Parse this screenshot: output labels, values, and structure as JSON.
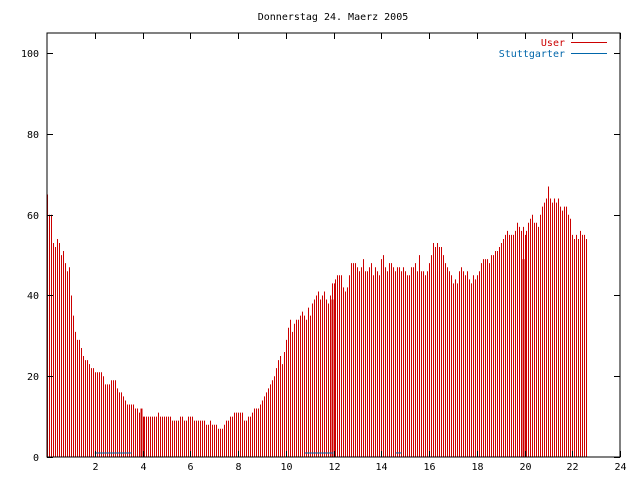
{
  "chart_data": {
    "type": "bar",
    "title": "Donnerstag 24. Maerz 2005",
    "xlabel": "",
    "ylabel": "",
    "xlim": [
      0,
      24
    ],
    "ylim": [
      0,
      105
    ],
    "xticks": [
      "2",
      "4",
      "6",
      "8",
      "10",
      "12",
      "14",
      "16",
      "18",
      "20",
      "22",
      "24"
    ],
    "yticks": [
      "0",
      "20",
      "40",
      "60",
      "80",
      "100"
    ],
    "grid": false,
    "legend_position": "top-right",
    "series": [
      {
        "name": "User",
        "color": "#cc0000",
        "step_minutes": 5,
        "values": [
          65,
          60,
          60,
          53,
          52,
          54,
          53,
          50,
          51,
          48,
          46,
          47,
          40,
          35,
          31,
          29,
          29,
          27,
          25,
          24,
          24,
          23,
          22,
          22,
          21,
          21,
          21,
          21,
          20,
          18,
          18,
          18,
          19,
          19,
          19,
          17,
          16,
          16,
          15,
          14,
          13,
          13,
          13,
          13,
          12,
          12,
          11,
          11,
          10,
          10,
          10,
          10,
          10,
          10,
          10,
          10,
          11,
          10,
          10,
          10,
          10,
          10,
          10,
          9,
          9,
          9,
          9,
          10,
          10,
          9,
          9,
          10,
          10,
          10,
          9,
          9,
          9,
          9,
          9,
          9,
          8,
          8,
          9,
          8,
          8,
          8,
          7,
          7,
          7,
          8,
          9,
          9,
          10,
          10,
          11,
          11,
          11,
          11,
          11,
          9,
          9,
          10,
          10,
          11,
          12,
          12,
          12,
          13,
          14,
          15,
          16,
          17,
          18,
          19,
          20,
          22,
          24,
          25,
          23,
          26,
          29,
          32,
          34,
          31,
          33,
          34,
          34,
          35,
          36,
          35,
          34,
          37,
          35,
          38,
          39,
          40,
          41,
          39,
          40,
          41,
          39,
          38,
          40,
          43,
          43,
          44,
          45,
          45,
          45,
          42,
          41,
          42,
          45,
          48,
          48,
          48,
          47,
          46,
          47,
          49,
          46,
          46,
          47,
          48,
          45,
          47,
          46,
          45,
          49,
          50,
          47,
          46,
          48,
          48,
          47,
          46,
          47,
          47,
          46,
          47,
          46,
          45,
          45,
          47,
          47,
          48,
          46,
          50,
          46,
          46,
          45,
          46,
          48,
          50,
          53,
          52,
          53,
          52,
          52,
          50,
          48,
          47,
          46,
          45,
          43,
          44,
          43,
          46,
          47,
          46,
          45,
          46,
          44,
          43,
          45,
          44,
          45,
          46,
          48,
          49,
          49,
          49,
          48,
          50,
          50,
          51,
          51,
          52,
          53,
          54,
          55,
          56,
          55,
          55,
          55,
          56,
          58,
          57,
          56,
          57,
          55,
          56,
          58,
          59,
          60,
          58,
          58,
          57,
          60,
          62,
          63,
          64,
          67,
          64,
          63,
          64,
          63,
          64,
          62,
          61,
          62,
          62,
          60,
          59,
          55,
          54,
          55,
          54,
          56,
          55,
          55,
          54
        ]
      },
      {
        "name": "Stuttgarter",
        "color": "#0066aa",
        "segments": [
          {
            "x_start": 2.0,
            "x_end": 3.55,
            "value": 1
          },
          {
            "x_start": 10.8,
            "x_end": 12.0,
            "value": 1
          },
          {
            "x_start": 14.6,
            "x_end": 14.85,
            "value": 1
          }
        ]
      }
    ],
    "highlight_bars": [
      {
        "x": 3.92,
        "value": 12
      },
      {
        "x": 11.92,
        "value": 39
      },
      {
        "x": 19.92,
        "value": 49
      }
    ]
  }
}
